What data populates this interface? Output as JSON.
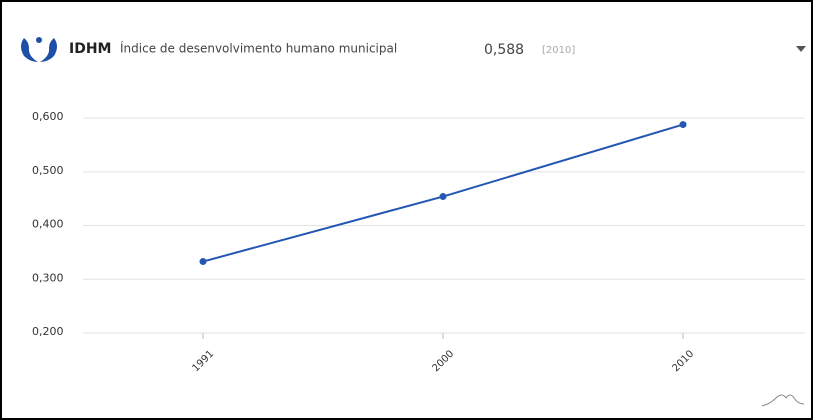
{
  "header": {
    "code": "IDHM",
    "name": "Índice de desenvolvimento humano municipal",
    "value": "0,588",
    "year": "[2010]"
  },
  "chart_data": {
    "type": "line",
    "categories": [
      "1991",
      "2000",
      "2010"
    ],
    "values": [
      0.333,
      0.454,
      0.588
    ],
    "color": "#2456b3",
    "ylim": [
      0.2,
      0.63
    ],
    "yticks": [
      {
        "value": 0.2,
        "label": "0,200"
      },
      {
        "value": 0.3,
        "label": "0,300"
      },
      {
        "value": 0.4,
        "label": "0,400"
      },
      {
        "value": 0.5,
        "label": "0,500"
      },
      {
        "value": 0.6,
        "label": "0,600"
      }
    ],
    "grid": true
  }
}
